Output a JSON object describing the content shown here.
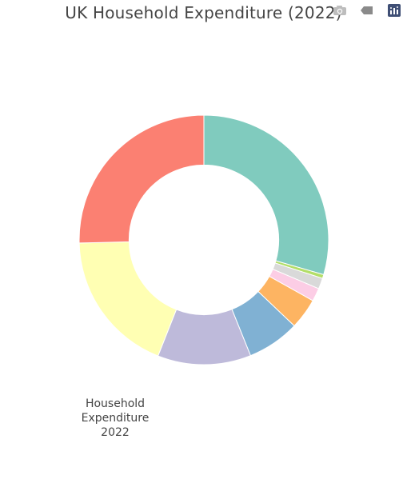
{
  "chart_data": {
    "type": "pie",
    "hole": 0.6,
    "title": "UK Household Expenditure (2022)",
    "legend_title_lines": [
      "Household",
      "Expenditure",
      "2022"
    ],
    "slices": [
      {
        "value": 29.5,
        "color": "#80cbbe"
      },
      {
        "value": 0.5,
        "color": "#b3de69"
      },
      {
        "value": 1.4,
        "color": "#d9d9d9"
      },
      {
        "value": 1.7,
        "color": "#fccde5"
      },
      {
        "value": 4.0,
        "color": "#fdb462"
      },
      {
        "value": 6.8,
        "color": "#80b1d3"
      },
      {
        "value": 12.1,
        "color": "#bebada"
      },
      {
        "value": 18.6,
        "color": "#ffffb3"
      },
      {
        "value": 25.4,
        "color": "#fb8072"
      }
    ]
  },
  "modebar": {
    "icons": [
      "camera-icon",
      "tag-icon",
      "plotly-logo-icon"
    ],
    "colors": {
      "icon": "#9a9a9a",
      "logo": "#3f4f75"
    }
  }
}
